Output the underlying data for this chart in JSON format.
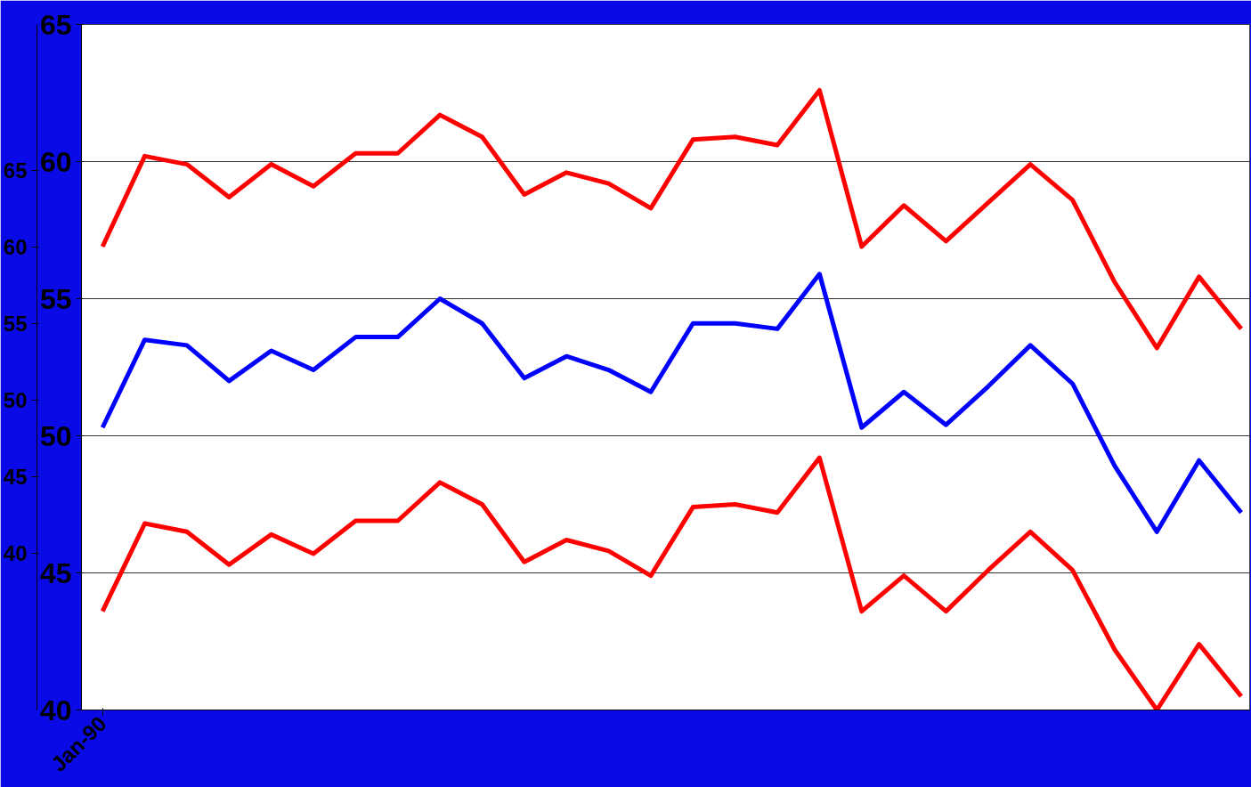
{
  "chart_data": {
    "type": "line",
    "categories": [
      "Jan-90",
      null,
      null,
      null,
      null,
      null,
      null,
      null,
      null,
      null,
      null,
      null,
      null,
      null,
      null,
      null,
      null,
      null,
      null,
      null,
      null,
      null,
      null,
      null,
      null,
      null,
      null,
      null
    ],
    "series": [
      {
        "color": "#ff0000",
        "values": [
          56.9,
          60.2,
          59.9,
          58.7,
          59.9,
          59.1,
          60.3,
          60.3,
          61.7,
          60.9,
          58.8,
          59.6,
          59.2,
          58.3,
          60.8,
          60.9,
          60.6,
          62.6,
          56.9,
          58.4,
          57.1,
          58.5,
          59.9,
          58.6,
          55.6,
          53.2,
          55.8,
          53.9
        ]
      },
      {
        "color": "#0000ff",
        "values": [
          50.3,
          53.5,
          53.3,
          52.0,
          53.1,
          52.4,
          53.6,
          53.6,
          55.0,
          54.1,
          52.1,
          52.9,
          52.4,
          51.6,
          54.1,
          54.1,
          53.9,
          55.9,
          50.3,
          51.6,
          50.4,
          51.8,
          53.3,
          51.9,
          48.9,
          46.5,
          49.1,
          47.2
        ]
      },
      {
        "color": "#ff0000",
        "values": [
          43.6,
          46.8,
          46.5,
          45.3,
          46.4,
          45.7,
          46.9,
          46.9,
          48.3,
          47.5,
          45.4,
          46.2,
          45.8,
          44.9,
          47.4,
          47.5,
          47.2,
          49.2,
          43.6,
          44.9,
          43.6,
          45.1,
          46.5,
          45.1,
          42.2,
          40.0,
          42.4,
          40.5
        ]
      }
    ],
    "ylim": [
      40,
      65
    ],
    "yticks": [
      40,
      45,
      50,
      55,
      60,
      65
    ],
    "y2lim": [
      29.8,
      74.5
    ],
    "y2ticks": [
      40,
      45,
      50,
      55,
      60,
      65
    ],
    "grid": "y",
    "marker": "none",
    "line_style": "solid"
  }
}
